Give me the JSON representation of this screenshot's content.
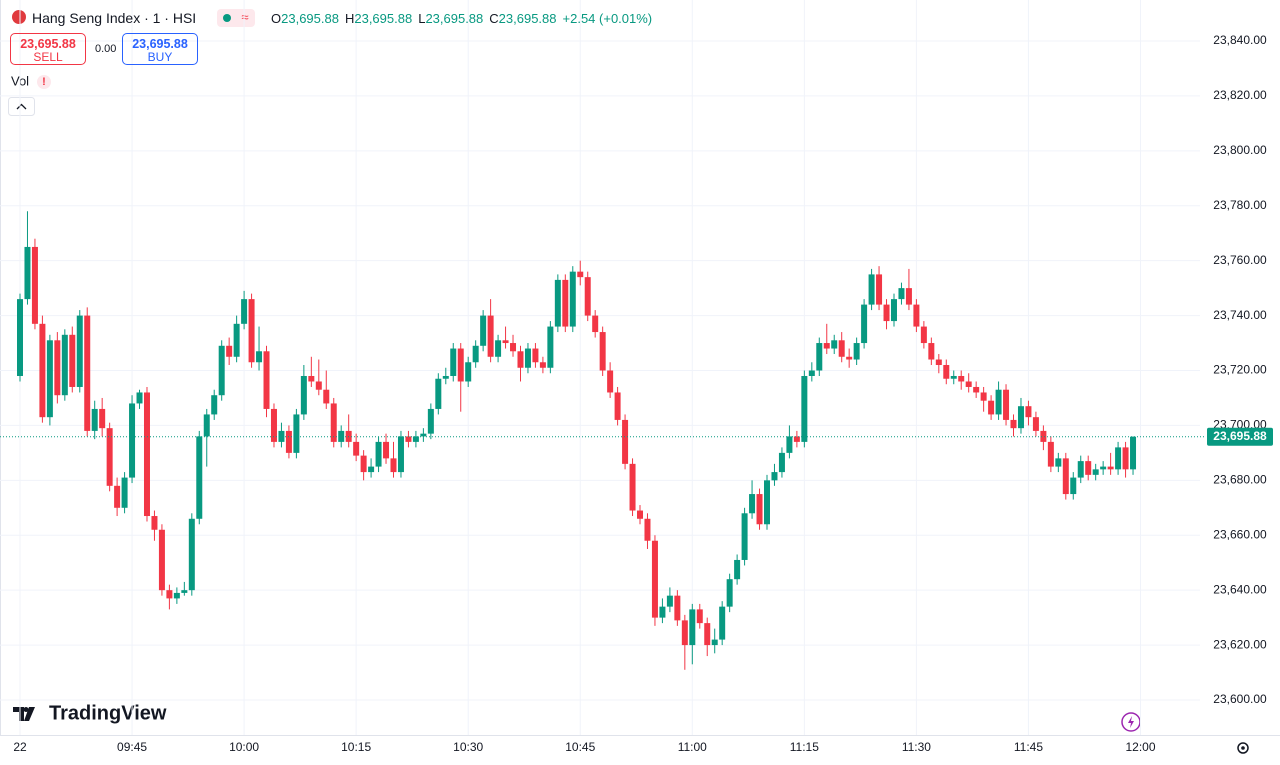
{
  "header": {
    "title": "Hang Seng Index · 1 · HSI",
    "legend": [
      {
        "label": "O",
        "value": "23,695.88"
      },
      {
        "label": "H",
        "value": "23,695.88"
      },
      {
        "label": "L",
        "value": "23,695.88"
      },
      {
        "label": "C",
        "value": "23,695.88"
      }
    ],
    "change": "+2.54 (+0.01%)",
    "sell": {
      "price": "23,695.88",
      "label": "SELL"
    },
    "spread": "0.00",
    "buy": {
      "price": "23,695.88",
      "label": "BUY"
    },
    "volume": "Vol",
    "logo": "TradingView"
  },
  "chart_data": {
    "type": "candlestick",
    "up_color": "#089981",
    "down_color": "#f23645",
    "ylim": [
      23595,
      23845
    ],
    "yticks": [
      {
        "value": 23600,
        "label": "23,600.00"
      },
      {
        "value": 23620,
        "label": "23,620.00"
      },
      {
        "value": 23640,
        "label": "23,640.00"
      },
      {
        "value": 23660,
        "label": "23,660.00"
      },
      {
        "value": 23680,
        "label": "23,680.00"
      },
      {
        "value": 23700,
        "label": "23,700.00"
      },
      {
        "value": 23720,
        "label": "23,720.00"
      },
      {
        "value": 23740,
        "label": "23,740.00"
      },
      {
        "value": 23760,
        "label": "23,760.00"
      },
      {
        "value": 23780,
        "label": "23,780.00"
      },
      {
        "value": 23800,
        "label": "23,800.00"
      },
      {
        "value": 23820,
        "label": "23,820.00"
      },
      {
        "value": 23840,
        "label": "23,840.00"
      }
    ],
    "xlim": [
      -0.5,
      159.5
    ],
    "xticks": [
      {
        "value": 0,
        "label": "22"
      },
      {
        "value": 15,
        "label": "09:45"
      },
      {
        "value": 30,
        "label": "10:00"
      },
      {
        "value": 45,
        "label": "10:15"
      },
      {
        "value": 60,
        "label": "10:30"
      },
      {
        "value": 75,
        "label": "10:45"
      },
      {
        "value": 90,
        "label": "11:00"
      },
      {
        "value": 105,
        "label": "11:15"
      },
      {
        "value": 120,
        "label": "11:30"
      },
      {
        "value": 135,
        "label": "11:45"
      },
      {
        "value": 150,
        "label": "12:00"
      }
    ],
    "last_price": {
      "value": 23695.88,
      "label": "23,695.88"
    },
    "grid": true,
    "ohlc": [
      [
        23718,
        23748,
        23716,
        23746
      ],
      [
        23746,
        23778,
        23744,
        23765
      ],
      [
        23765,
        23768,
        23735,
        23737
      ],
      [
        23737,
        23740,
        23701,
        23703
      ],
      [
        23703,
        23733,
        23700,
        23731
      ],
      [
        23731,
        23734,
        23708,
        23711
      ],
      [
        23711,
        23735,
        23709,
        23733
      ],
      [
        23733,
        23736,
        23712,
        23714
      ],
      [
        23714,
        23742,
        23712,
        23740
      ],
      [
        23740,
        23743,
        23696,
        23698
      ],
      [
        23698,
        23709,
        23695,
        23706
      ],
      [
        23706,
        23710,
        23696,
        23699
      ],
      [
        23699,
        23701,
        23676,
        23678
      ],
      [
        23678,
        23681,
        23667,
        23670
      ],
      [
        23670,
        23683,
        23668,
        23681
      ],
      [
        23681,
        23711,
        23679,
        23708
      ],
      [
        23708,
        23713,
        23706,
        23712
      ],
      [
        23712,
        23714,
        23665,
        23667
      ],
      [
        23667,
        23669,
        23658,
        23662
      ],
      [
        23662,
        23664,
        23638,
        23640
      ],
      [
        23640,
        23642,
        23633,
        23637
      ],
      [
        23637,
        23641,
        23635,
        23639
      ],
      [
        23639,
        23643,
        23638,
        23640
      ],
      [
        23640,
        23668,
        23638,
        23666
      ],
      [
        23666,
        23698,
        23664,
        23696
      ],
      [
        23696,
        23706,
        23685,
        23704
      ],
      [
        23704,
        23713,
        23702,
        23711
      ],
      [
        23711,
        23731,
        23709,
        23729
      ],
      [
        23729,
        23732,
        23722,
        23725
      ],
      [
        23725,
        23740,
        23723,
        23737
      ],
      [
        23737,
        23749,
        23735,
        23746
      ],
      [
        23746,
        23748,
        23721,
        23723
      ],
      [
        23723,
        23736,
        23720,
        23727
      ],
      [
        23727,
        23729,
        23703,
        23706
      ],
      [
        23706,
        23708,
        23692,
        23694
      ],
      [
        23694,
        23701,
        23692,
        23698
      ],
      [
        23698,
        23700,
        23688,
        23690
      ],
      [
        23690,
        23706,
        23688,
        23704
      ],
      [
        23704,
        23722,
        23702,
        23718
      ],
      [
        23718,
        23725,
        23714,
        23716
      ],
      [
        23716,
        23724,
        23711,
        23713
      ],
      [
        23713,
        23720,
        23706,
        23708
      ],
      [
        23708,
        23710,
        23692,
        23694
      ],
      [
        23694,
        23700,
        23692,
        23698
      ],
      [
        23698,
        23704,
        23692,
        23694
      ],
      [
        23694,
        23697,
        23687,
        23689
      ],
      [
        23689,
        23691,
        23680,
        23683
      ],
      [
        23683,
        23688,
        23681,
        23685
      ],
      [
        23685,
        23696,
        23683,
        23694
      ],
      [
        23694,
        23697,
        23686,
        23688
      ],
      [
        23688,
        23694,
        23681,
        23683
      ],
      [
        23683,
        23698,
        23681,
        23696
      ],
      [
        23696,
        23698,
        23692,
        23694
      ],
      [
        23694,
        23698,
        23692,
        23696
      ],
      [
        23696,
        23699,
        23694,
        23697
      ],
      [
        23697,
        23708,
        23695,
        23706
      ],
      [
        23706,
        23719,
        23704,
        23717
      ],
      [
        23717,
        23721,
        23715,
        23718
      ],
      [
        23718,
        23730,
        23716,
        23728
      ],
      [
        23728,
        23730,
        23705,
        23716
      ],
      [
        23716,
        23725,
        23714,
        23723
      ],
      [
        23723,
        23731,
        23721,
        23729
      ],
      [
        23729,
        23742,
        23727,
        23740
      ],
      [
        23740,
        23746,
        23723,
        23725
      ],
      [
        23725,
        23733,
        23723,
        23731
      ],
      [
        23731,
        23736,
        23728,
        23730
      ],
      [
        23730,
        23733,
        23725,
        23727
      ],
      [
        23727,
        23729,
        23716,
        23721
      ],
      [
        23721,
        23730,
        23719,
        23728
      ],
      [
        23728,
        23730,
        23721,
        23723
      ],
      [
        23723,
        23725,
        23719,
        23721
      ],
      [
        23721,
        23738,
        23719,
        23736
      ],
      [
        23736,
        23755,
        23734,
        23753
      ],
      [
        23753,
        23755,
        23734,
        23736
      ],
      [
        23736,
        23758,
        23734,
        23756
      ],
      [
        23756,
        23760,
        23751,
        23754
      ],
      [
        23754,
        23756,
        23738,
        23740
      ],
      [
        23740,
        23742,
        23732,
        23734
      ],
      [
        23734,
        23736,
        23718,
        23720
      ],
      [
        23720,
        23723,
        23710,
        23712
      ],
      [
        23712,
        23714,
        23700,
        23702
      ],
      [
        23702,
        23704,
        23684,
        23686
      ],
      [
        23686,
        23688,
        23667,
        23669
      ],
      [
        23669,
        23671,
        23664,
        23666
      ],
      [
        23666,
        23668,
        23655,
        23658
      ],
      [
        23658,
        23660,
        23627,
        23630
      ],
      [
        23630,
        23637,
        23628,
        23634
      ],
      [
        23634,
        23641,
        23632,
        23638
      ],
      [
        23638,
        23640,
        23627,
        23629
      ],
      [
        23629,
        23631,
        23611,
        23620
      ],
      [
        23620,
        23635,
        23613,
        23633
      ],
      [
        23633,
        23635,
        23626,
        23628
      ],
      [
        23628,
        23630,
        23616,
        23620
      ],
      [
        23620,
        23626,
        23617,
        23622
      ],
      [
        23622,
        23636,
        23620,
        23634
      ],
      [
        23634,
        23646,
        23632,
        23644
      ],
      [
        23644,
        23653,
        23642,
        23651
      ],
      [
        23651,
        23670,
        23649,
        23668
      ],
      [
        23668,
        23680,
        23666,
        23675
      ],
      [
        23675,
        23677,
        23662,
        23664
      ],
      [
        23664,
        23682,
        23662,
        23680
      ],
      [
        23680,
        23686,
        23678,
        23683
      ],
      [
        23683,
        23692,
        23681,
        23690
      ],
      [
        23690,
        23700,
        23688,
        23696
      ],
      [
        23696,
        23698,
        23692,
        23694
      ],
      [
        23694,
        23720,
        23692,
        23718
      ],
      [
        23718,
        23723,
        23716,
        23720
      ],
      [
        23720,
        23732,
        23718,
        23730
      ],
      [
        23730,
        23737,
        23726,
        23728
      ],
      [
        23728,
        23733,
        23726,
        23731
      ],
      [
        23731,
        23734,
        23723,
        23725
      ],
      [
        23725,
        23728,
        23721,
        23724
      ],
      [
        23724,
        23732,
        23722,
        23730
      ],
      [
        23730,
        23746,
        23728,
        23744
      ],
      [
        23744,
        23757,
        23742,
        23755
      ],
      [
        23755,
        23758,
        23742,
        23744
      ],
      [
        23744,
        23746,
        23735,
        23738
      ],
      [
        23738,
        23748,
        23736,
        23746
      ],
      [
        23746,
        23752,
        23744,
        23750
      ],
      [
        23750,
        23757,
        23742,
        23744
      ],
      [
        23744,
        23746,
        23734,
        23736
      ],
      [
        23736,
        23738,
        23728,
        23730
      ],
      [
        23730,
        23732,
        23722,
        23724
      ],
      [
        23724,
        23726,
        23719,
        23722
      ],
      [
        23722,
        23724,
        23715,
        23717
      ],
      [
        23717,
        23720,
        23715,
        23718
      ],
      [
        23718,
        23720,
        23713,
        23716
      ],
      [
        23716,
        23719,
        23712,
        23714
      ],
      [
        23714,
        23716,
        23710,
        23712
      ],
      [
        23712,
        23714,
        23705,
        23709
      ],
      [
        23709,
        23711,
        23702,
        23704
      ],
      [
        23704,
        23716,
        23702,
        23713
      ],
      [
        23713,
        23715,
        23700,
        23702
      ],
      [
        23702,
        23704,
        23696,
        23699
      ],
      [
        23699,
        23710,
        23697,
        23707
      ],
      [
        23707,
        23709,
        23700,
        23703
      ],
      [
        23703,
        23705,
        23696,
        23698
      ],
      [
        23698,
        23700,
        23691,
        23694
      ],
      [
        23694,
        23696,
        23683,
        23685
      ],
      [
        23685,
        23690,
        23683,
        23688
      ],
      [
        23688,
        23690,
        23673,
        23675
      ],
      [
        23675,
        23683,
        23673,
        23681
      ],
      [
        23681,
        23689,
        23679,
        23687
      ],
      [
        23687,
        23689,
        23680,
        23682
      ],
      [
        23682,
        23686,
        23680,
        23684
      ],
      [
        23684,
        23687,
        23682,
        23685
      ],
      [
        23685,
        23690,
        23682,
        23684
      ],
      [
        23684,
        23694,
        23682,
        23692
      ],
      [
        23692,
        23694,
        23681,
        23684
      ],
      [
        23684,
        23696,
        23682,
        23695.88
      ]
    ]
  }
}
